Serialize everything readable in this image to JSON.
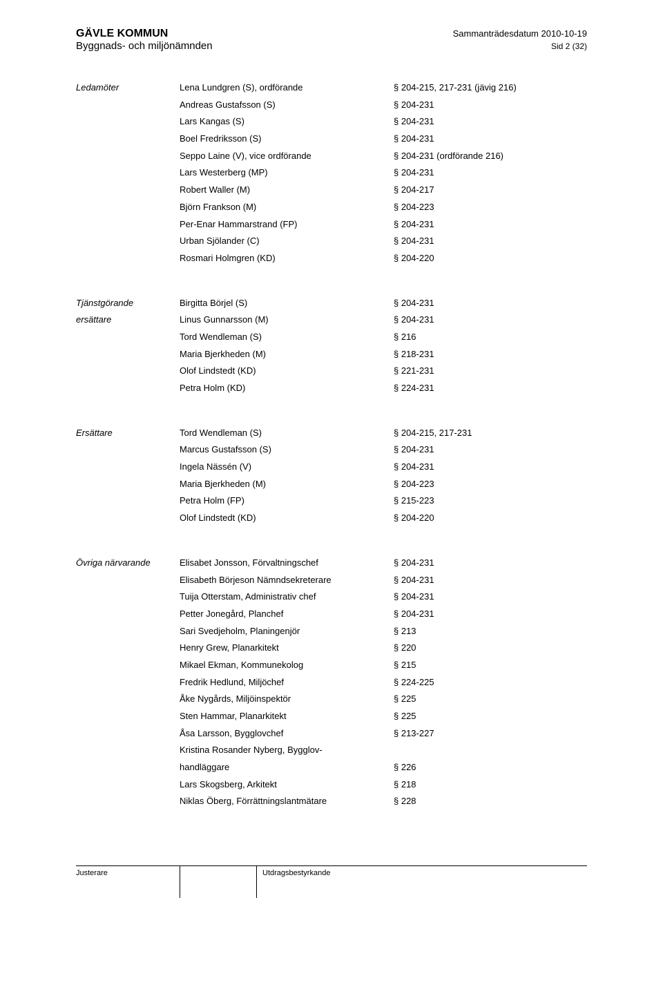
{
  "header": {
    "org": "GÄVLE KOMMUN",
    "dept": "Byggnads- och miljönämnden",
    "meeting_label": "Sammanträdesdatum 2010-10-19",
    "page_label": "Sid 2 (32)"
  },
  "sections": [
    {
      "label": "Ledamöter",
      "rows": [
        {
          "name": "Lena Lundgren (S), ordförande",
          "para": "§ 204-215, 217-231 (jävig 216)"
        },
        {
          "name": "Andreas Gustafsson (S)",
          "para": "§ 204-231"
        },
        {
          "name": "Lars Kangas (S)",
          "para": "§ 204-231"
        },
        {
          "name": "Boel Fredriksson (S)",
          "para": "§ 204-231"
        },
        {
          "name": "Seppo Laine (V), vice ordförande",
          "para": "§ 204-231 (ordförande 216)"
        },
        {
          "name": "Lars Westerberg (MP)",
          "para": "§ 204-231"
        },
        {
          "name": "Robert Waller (M)",
          "para": "§ 204-217"
        },
        {
          "name": "Björn Frankson (M)",
          "para": "§ 204-223"
        },
        {
          "name": "Per-Enar Hammarstrand (FP)",
          "para": "§ 204-231"
        },
        {
          "name": "Urban Sjölander (C)",
          "para": "§ 204-231"
        },
        {
          "name": "Rosmari Holmgren (KD)",
          "para": "§ 204-220"
        }
      ]
    },
    {
      "label": "Tjänstgörande",
      "label2": "ersättare",
      "rows": [
        {
          "name": "Birgitta Börjel (S)",
          "para": "§ 204-231"
        },
        {
          "name": "Linus Gunnarsson (M)",
          "para": "§ 204-231"
        },
        {
          "name": "Tord Wendleman (S)",
          "para": "§ 216"
        },
        {
          "name": "Maria Bjerkheden (M)",
          "para": "§ 218-231"
        },
        {
          "name": "Olof Lindstedt (KD)",
          "para": "§ 221-231"
        },
        {
          "name": "Petra Holm (KD)",
          "para": "§ 224-231"
        }
      ]
    },
    {
      "label": "Ersättare",
      "rows": [
        {
          "name": "Tord Wendleman (S)",
          "para": "§ 204-215, 217-231"
        },
        {
          "name": "Marcus Gustafsson (S)",
          "para": "§ 204-231"
        },
        {
          "name": "Ingela Nässén (V)",
          "para": "§ 204-231"
        },
        {
          "name": "Maria Bjerkheden (M)",
          "para": "§ 204-223"
        },
        {
          "name": "Petra Holm (FP)",
          "para": "§ 215-223"
        },
        {
          "name": "Olof Lindstedt (KD)",
          "para": "§ 204-220"
        }
      ]
    },
    {
      "label": "Övriga närvarande",
      "rows": [
        {
          "name": "Elisabet Jonsson, Förvaltningschef",
          "para": "§ 204-231"
        },
        {
          "name": "Elisabeth Börjeson Nämndsekreterare",
          "para": "§ 204-231"
        },
        {
          "name": "Tuija Otterstam, Administrativ chef",
          "para": "§ 204-231"
        },
        {
          "name": "Petter Jonegård, Planchef",
          "para": "§ 204-231"
        },
        {
          "name": "Sari Svedjeholm, Planingenjör",
          "para": "§ 213"
        },
        {
          "name": "Henry Grew, Planarkitekt",
          "para": "§ 220"
        },
        {
          "name": "Mikael Ekman, Kommunekolog",
          "para": "§ 215"
        },
        {
          "name": "Fredrik Hedlund, Miljöchef",
          "para": "§ 224-225"
        },
        {
          "name": "Åke Nygårds, Miljöinspektör",
          "para": "§ 225"
        },
        {
          "name": "Sten Hammar, Planarkitekt",
          "para": "§ 225"
        },
        {
          "name": "Åsa Larsson, Bygglovchef",
          "para": "§ 213-227"
        },
        {
          "name": "Kristina Rosander Nyberg, Bygglov-",
          "para": ""
        },
        {
          "name": "handläggare",
          "para": "§ 226"
        },
        {
          "name": "Lars Skogsberg, Arkitekt",
          "para": "§ 218"
        },
        {
          "name": "Niklas Öberg, Förrättningslantmätare",
          "para": "§ 228"
        }
      ]
    }
  ],
  "footer": {
    "left": "Justerare",
    "right": "Utdragsbestyrkande"
  }
}
